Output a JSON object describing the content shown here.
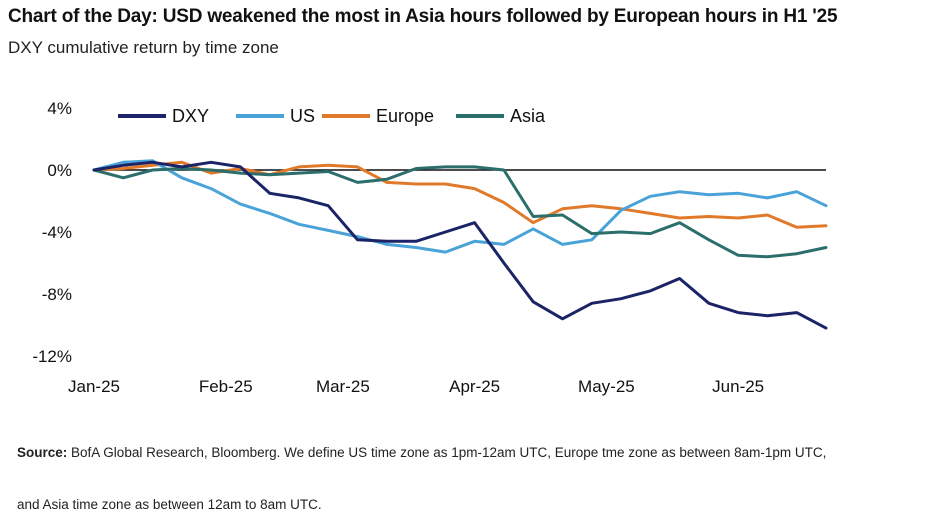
{
  "title": "Chart of the Day: USD weakened the most in Asia hours followed by European hours in H1 '25",
  "subtitle": "DXY cumulative return by time zone",
  "source_label": "Source:",
  "source_text_1": "BofA Global Research, Bloomberg. We define US time zone as 1pm-12am UTC, Europe tme zone as between 8am-1pm UTC,",
  "source_text_2": "and Asia time zone as between 12am to 8am UTC.",
  "colors": {
    "DXY": "#1b2466",
    "US": "#4aa3d8",
    "Europe": "#e07a2a",
    "Asia": "#2b6e6b",
    "zero_line": "#111111"
  },
  "chart_data": {
    "type": "line",
    "x_unit": "trading week (2025)",
    "x_ticks": [
      {
        "label": "Jan-25",
        "x": 0
      },
      {
        "label": "Feb-25",
        "x": 4.5
      },
      {
        "label": "Mar-25",
        "x": 8.5
      },
      {
        "label": "Apr-25",
        "x": 13
      },
      {
        "label": "May-25",
        "x": 17.5
      },
      {
        "label": "Jun-25",
        "x": 22
      }
    ],
    "y_ticks": [
      {
        "label": "4%",
        "value": 4
      },
      {
        "label": "0%",
        "value": 0
      },
      {
        "label": "-4%",
        "value": -4
      },
      {
        "label": "-8%",
        "value": -8
      },
      {
        "label": "-12%",
        "value": -12
      }
    ],
    "ylim": [
      -12,
      4
    ],
    "xlim": [
      0,
      25
    ],
    "x": [
      0,
      1,
      2,
      3,
      4,
      5,
      6,
      7,
      8,
      9,
      10,
      11,
      12,
      13,
      14,
      15,
      16,
      17,
      18,
      19,
      20,
      21,
      22,
      23,
      24,
      25
    ],
    "series": [
      {
        "name": "DXY",
        "values": [
          0,
          0.3,
          0.5,
          0.2,
          0.5,
          0.2,
          -1.5,
          -1.8,
          -2.3,
          -4.5,
          -4.6,
          -4.6,
          -4.0,
          -3.4,
          -6.0,
          -8.5,
          -9.6,
          -8.6,
          -8.3,
          -7.8,
          -7.0,
          -8.6,
          -9.2,
          -9.4,
          -9.2,
          -10.2
        ]
      },
      {
        "name": "US",
        "values": [
          0,
          0.5,
          0.6,
          -0.5,
          -1.2,
          -2.2,
          -2.8,
          -3.5,
          -3.9,
          -4.3,
          -4.8,
          -5.0,
          -5.3,
          -4.6,
          -4.8,
          -3.8,
          -4.8,
          -4.5,
          -2.6,
          -1.7,
          -1.4,
          -1.6,
          -1.5,
          -1.8,
          -1.4,
          -2.3
        ]
      },
      {
        "name": "Europe",
        "values": [
          0,
          0.1,
          0.3,
          0.5,
          -0.2,
          0.1,
          -0.3,
          0.2,
          0.3,
          0.2,
          -0.8,
          -0.9,
          -0.9,
          -1.2,
          -2.1,
          -3.4,
          -2.5,
          -2.3,
          -2.5,
          -2.8,
          -3.1,
          -3.0,
          -3.1,
          -2.9,
          -3.7,
          -3.6
        ]
      },
      {
        "name": "Asia",
        "values": [
          0,
          -0.5,
          0.0,
          0.1,
          0.0,
          -0.2,
          -0.3,
          -0.2,
          -0.1,
          -0.8,
          -0.6,
          0.1,
          0.2,
          0.2,
          0.0,
          -3.0,
          -2.9,
          -4.1,
          -4.0,
          -4.1,
          -3.4,
          -4.5,
          -5.5,
          -5.6,
          -5.4,
          -5.0
        ]
      }
    ],
    "legend_position": "top",
    "grid": false
  }
}
